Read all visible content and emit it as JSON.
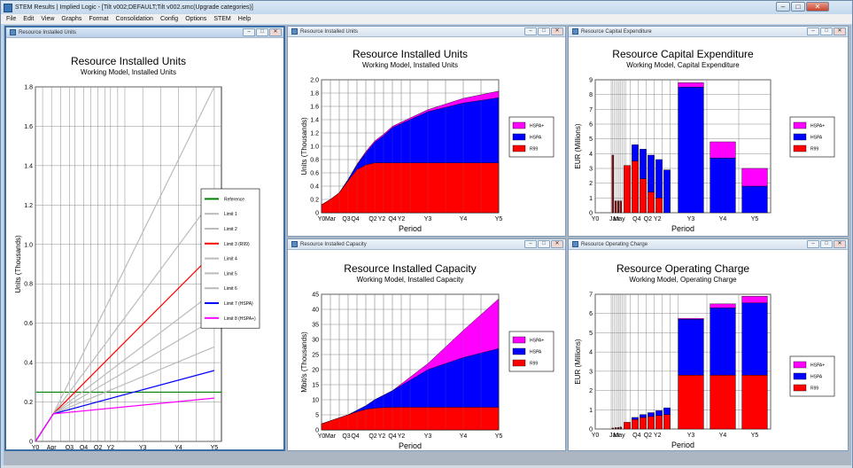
{
  "window": {
    "title": "STEM Results | Implied Logic - [Tilt v002;DEFAULT;Tilt v002.smc(Upgrade categories)]",
    "controls": [
      "–",
      "□",
      "✕"
    ]
  },
  "menu": [
    "File",
    "Edit",
    "View",
    "Graphs",
    "Format",
    "Consolidation",
    "Config",
    "Options",
    "STEM",
    "Help"
  ],
  "panel_controls": [
    "–",
    "□",
    "✕"
  ],
  "colors": {
    "hspa_plus": "#ff00ff",
    "hspa": "#0000ff",
    "r99": "#ff0000",
    "reference": "#008000",
    "limit_gray": "#bbbbbb",
    "dark_red": "#991111",
    "grid": "#999999"
  },
  "chart_data": [
    {
      "id": "left-installed-units",
      "panel_title": "Resource Installed Units",
      "type": "line",
      "title": "Resource Installed Units",
      "subtitle": "Working Model, Installed Units",
      "xlabel": "Period",
      "ylabel": "Units  (Thousands)",
      "ylim": [
        0,
        1.8
      ],
      "yticks": [
        "0",
        "0.2",
        "0.4",
        "0.6",
        "0.8",
        "1.0",
        "1.2",
        "1.4",
        "1.6",
        "1.8"
      ],
      "xticks": [
        "Y0",
        "Apr",
        "Q3",
        "Q4",
        "Q2",
        "Y2",
        "Y3",
        "Y4",
        "Y5"
      ],
      "x": [
        0,
        0.5,
        5
      ],
      "legend_position": "right",
      "series": [
        {
          "name": "Reference",
          "color": "#008000",
          "values": [
            0.25,
            0.25,
            0.25
          ],
          "flat": true
        },
        {
          "name": "Limit 1",
          "color": "#bbbbbb",
          "values": [
            0,
            0.14,
            1.8
          ]
        },
        {
          "name": "Limit 2",
          "color": "#bbbbbb",
          "values": [
            0,
            0.14,
            1.24
          ]
        },
        {
          "name": "Limit 3 (R99)",
          "color": "#ff0000",
          "values": [
            0,
            0.14,
            0.96
          ]
        },
        {
          "name": "Limit 4",
          "color": "#bbbbbb",
          "values": [
            0,
            0.14,
            0.76
          ]
        },
        {
          "name": "Limit 5",
          "color": "#bbbbbb",
          "values": [
            0,
            0.14,
            0.62
          ]
        },
        {
          "name": "Limit 6",
          "color": "#bbbbbb",
          "values": [
            0,
            0.14,
            0.48
          ]
        },
        {
          "name": "Limit 7 (HSPA)",
          "color": "#0000ff",
          "values": [
            0,
            0.14,
            0.36
          ]
        },
        {
          "name": "Limit 8 (HSPA+)",
          "color": "#ff00ff",
          "values": [
            0,
            0.14,
            0.22
          ]
        }
      ]
    },
    {
      "id": "installed-units",
      "panel_title": "Resource Installed Units",
      "type": "area",
      "title": "Resource Installed Units",
      "subtitle": "Working Model, Installed Units",
      "xlabel": "Period",
      "ylabel": "Units  (Thousands)",
      "ylim": [
        0,
        2.0
      ],
      "yticks": [
        "0",
        "0.2",
        "0.4",
        "0.6",
        "0.8",
        "1.0",
        "1.2",
        "1.4",
        "1.6",
        "1.8",
        "2.0"
      ],
      "xticks": [
        "Y0",
        "Mar",
        "Q3",
        "Q4",
        "Q2",
        "Y2",
        "Q4",
        "Y2",
        "Y3",
        "Y4",
        "Y5"
      ],
      "x": [
        0,
        0.25,
        0.5,
        0.75,
        1.0,
        1.25,
        1.5,
        1.75,
        2.0,
        3.0,
        4.0,
        5.0
      ],
      "legend_position": "right",
      "series": [
        {
          "name": "HSPA+",
          "color": "#ff00ff",
          "values": [
            0.12,
            0.2,
            0.3,
            0.5,
            0.73,
            0.92,
            1.08,
            1.18,
            1.3,
            1.55,
            1.72,
            1.83
          ]
        },
        {
          "name": "HSPA",
          "color": "#0000ff",
          "values": [
            0.12,
            0.2,
            0.3,
            0.5,
            0.72,
            0.9,
            1.06,
            1.16,
            1.28,
            1.52,
            1.65,
            1.73
          ]
        },
        {
          "name": "R99",
          "color": "#ff0000",
          "values": [
            0.12,
            0.2,
            0.3,
            0.48,
            0.65,
            0.72,
            0.75,
            0.75,
            0.75,
            0.75,
            0.75,
            0.75
          ]
        }
      ]
    },
    {
      "id": "installed-capacity",
      "panel_title": "Resource Installed Capacity",
      "type": "area",
      "title": "Resource Installed Capacity",
      "subtitle": "Working Model, Installed Capacity",
      "xlabel": "Period",
      "ylabel": "Mbit/s  (Thousands)",
      "ylim": [
        0,
        45
      ],
      "yticks": [
        "0",
        "5",
        "10",
        "15",
        "20",
        "25",
        "30",
        "35",
        "40",
        "45"
      ],
      "xticks": [
        "Y0",
        "Mar",
        "Q3",
        "Q4",
        "Q2",
        "Y2",
        "Q4",
        "Y2",
        "Y3",
        "Y4",
        "Y5"
      ],
      "x": [
        0,
        0.25,
        0.5,
        0.75,
        1.0,
        1.25,
        1.5,
        1.75,
        2.0,
        3.0,
        4.0,
        5.0
      ],
      "legend_position": "right",
      "series": [
        {
          "name": "HSPA+",
          "color": "#ff00ff",
          "values": [
            2,
            3,
            4,
            5,
            6.5,
            8,
            10,
            11.5,
            13,
            22,
            33,
            43.5
          ]
        },
        {
          "name": "HSPA",
          "color": "#0000ff",
          "values": [
            2,
            3,
            4,
            5,
            6.5,
            8,
            10,
            11.5,
            13,
            20,
            24,
            27
          ]
        },
        {
          "name": "R99",
          "color": "#ff0000",
          "values": [
            2,
            3,
            4,
            5,
            6,
            6.8,
            7.2,
            7.4,
            7.5,
            7.5,
            7.5,
            7.5
          ]
        }
      ]
    },
    {
      "id": "capital-expenditure",
      "panel_title": "Resource Capital Expenditure",
      "type": "bar",
      "title": "Resource Capital Expenditure",
      "subtitle": "Working Model, Capital Expenditure",
      "xlabel": "Period",
      "ylabel": "EUR  (Millions)",
      "ylim": [
        0,
        9
      ],
      "yticks": [
        "0",
        "1",
        "2",
        "3",
        "4",
        "5",
        "6",
        "7",
        "8",
        "9"
      ],
      "xticks": [
        "Y0",
        "Jan",
        "May",
        "Q4",
        "Q2",
        "Y2",
        "Y3",
        "Y4",
        "Y5"
      ],
      "legend_position": "right",
      "bars": [
        {
          "x": 0.55,
          "w": 0.05,
          "r99": 3.9,
          "hspa": 0,
          "hspa_plus": 0,
          "dark": true
        },
        {
          "x": 0.64,
          "w": 0.05,
          "r99": 0.8,
          "hspa": 0,
          "hspa_plus": 0,
          "dark": true
        },
        {
          "x": 0.72,
          "w": 0.05,
          "r99": 0.8,
          "hspa": 0,
          "hspa_plus": 0,
          "dark": true
        },
        {
          "x": 0.8,
          "w": 0.05,
          "r99": 0.8,
          "hspa": 0,
          "hspa_plus": 0,
          "dark": true
        },
        {
          "x": 1.0,
          "w": 0.2,
          "r99": 3.2,
          "hspa": 0,
          "hspa_plus": 0
        },
        {
          "x": 1.25,
          "w": 0.2,
          "r99": 3.5,
          "hspa": 1.1,
          "hspa_plus": 0
        },
        {
          "x": 1.5,
          "w": 0.2,
          "r99": 2.3,
          "hspa": 2.0,
          "hspa_plus": 0
        },
        {
          "x": 1.75,
          "w": 0.2,
          "r99": 1.4,
          "hspa": 2.5,
          "hspa_plus": 0
        },
        {
          "x": 2.0,
          "w": 0.2,
          "r99": 1.0,
          "hspa": 2.6,
          "hspa_plus": 0
        },
        {
          "x": 2.25,
          "w": 0.2,
          "r99": 0,
          "hspa": 2.9,
          "hspa_plus": 0
        },
        {
          "x": 3.0,
          "w": 0.8,
          "r99": 0,
          "hspa": 8.5,
          "hspa_plus": 0.3
        },
        {
          "x": 4.0,
          "w": 0.8,
          "r99": 0,
          "hspa": 3.7,
          "hspa_plus": 1.1
        },
        {
          "x": 5.0,
          "w": 0.8,
          "r99": 0,
          "hspa": 1.8,
          "hspa_plus": 1.2
        }
      ],
      "series": [
        {
          "name": "HSPA+",
          "color": "#ff00ff"
        },
        {
          "name": "HSPA",
          "color": "#0000ff"
        },
        {
          "name": "R99",
          "color": "#ff0000"
        }
      ]
    },
    {
      "id": "operating-charge",
      "panel_title": "Resource Operating Charge",
      "type": "bar",
      "title": "Resource Operating Charge",
      "subtitle": "Working Model, Operating Charge",
      "xlabel": "Period",
      "ylabel": "EUR  (Millions)",
      "ylim": [
        0,
        7
      ],
      "yticks": [
        "0",
        "1",
        "2",
        "3",
        "4",
        "5",
        "6",
        "7"
      ],
      "xticks": [
        "Y0",
        "Jan",
        "May",
        "Q4",
        "Q2",
        "Y2",
        "Y3",
        "Y4",
        "Y5"
      ],
      "legend_position": "right",
      "bars": [
        {
          "x": 0.55,
          "w": 0.05,
          "r99": 0.05,
          "hspa": 0,
          "hspa_plus": 0,
          "dark": true
        },
        {
          "x": 0.64,
          "w": 0.05,
          "r99": 0.07,
          "hspa": 0,
          "hspa_plus": 0,
          "dark": true
        },
        {
          "x": 0.72,
          "w": 0.05,
          "r99": 0.08,
          "hspa": 0,
          "hspa_plus": 0,
          "dark": true
        },
        {
          "x": 0.8,
          "w": 0.05,
          "r99": 0.1,
          "hspa": 0,
          "hspa_plus": 0,
          "dark": true
        },
        {
          "x": 1.0,
          "w": 0.2,
          "r99": 0.35,
          "hspa": 0,
          "hspa_plus": 0
        },
        {
          "x": 1.25,
          "w": 0.2,
          "r99": 0.5,
          "hspa": 0.1,
          "hspa_plus": 0
        },
        {
          "x": 1.5,
          "w": 0.2,
          "r99": 0.6,
          "hspa": 0.15,
          "hspa_plus": 0
        },
        {
          "x": 1.75,
          "w": 0.2,
          "r99": 0.65,
          "hspa": 0.2,
          "hspa_plus": 0
        },
        {
          "x": 2.0,
          "w": 0.2,
          "r99": 0.7,
          "hspa": 0.25,
          "hspa_plus": 0
        },
        {
          "x": 2.25,
          "w": 0.2,
          "r99": 0.75,
          "hspa": 0.35,
          "hspa_plus": 0
        },
        {
          "x": 3.0,
          "w": 0.8,
          "r99": 2.8,
          "hspa": 2.9,
          "hspa_plus": 0.05
        },
        {
          "x": 4.0,
          "w": 0.8,
          "r99": 2.8,
          "hspa": 3.5,
          "hspa_plus": 0.2
        },
        {
          "x": 5.0,
          "w": 0.8,
          "r99": 2.8,
          "hspa": 3.75,
          "hspa_plus": 0.35
        }
      ],
      "series": [
        {
          "name": "HSPA+",
          "color": "#ff00ff"
        },
        {
          "name": "HSPA",
          "color": "#0000ff"
        },
        {
          "name": "R99",
          "color": "#ff0000"
        }
      ]
    }
  ]
}
